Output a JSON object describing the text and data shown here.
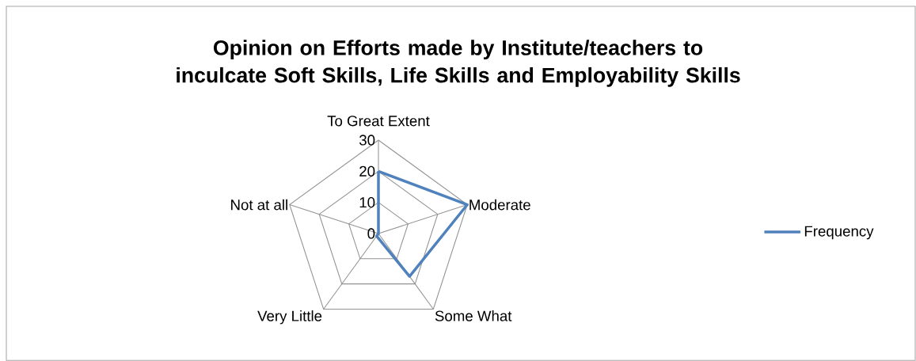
{
  "chart_data": {
    "type": "radar",
    "title": "Opinion on Efforts made by Institute/teachers to inculcate Soft Skills, Life Skills and Employability Skills",
    "categories": [
      "To Great Extent",
      "Moderate",
      "Some What",
      "Very Little",
      "Not at all"
    ],
    "series": [
      {
        "name": "Frequency",
        "color": "#4f81bd",
        "values": [
          20,
          30,
          17,
          1,
          0
        ]
      }
    ],
    "ylim": [
      0,
      30
    ],
    "yticks": [
      0,
      10,
      20,
      30
    ],
    "grid": true,
    "legend": "right"
  }
}
